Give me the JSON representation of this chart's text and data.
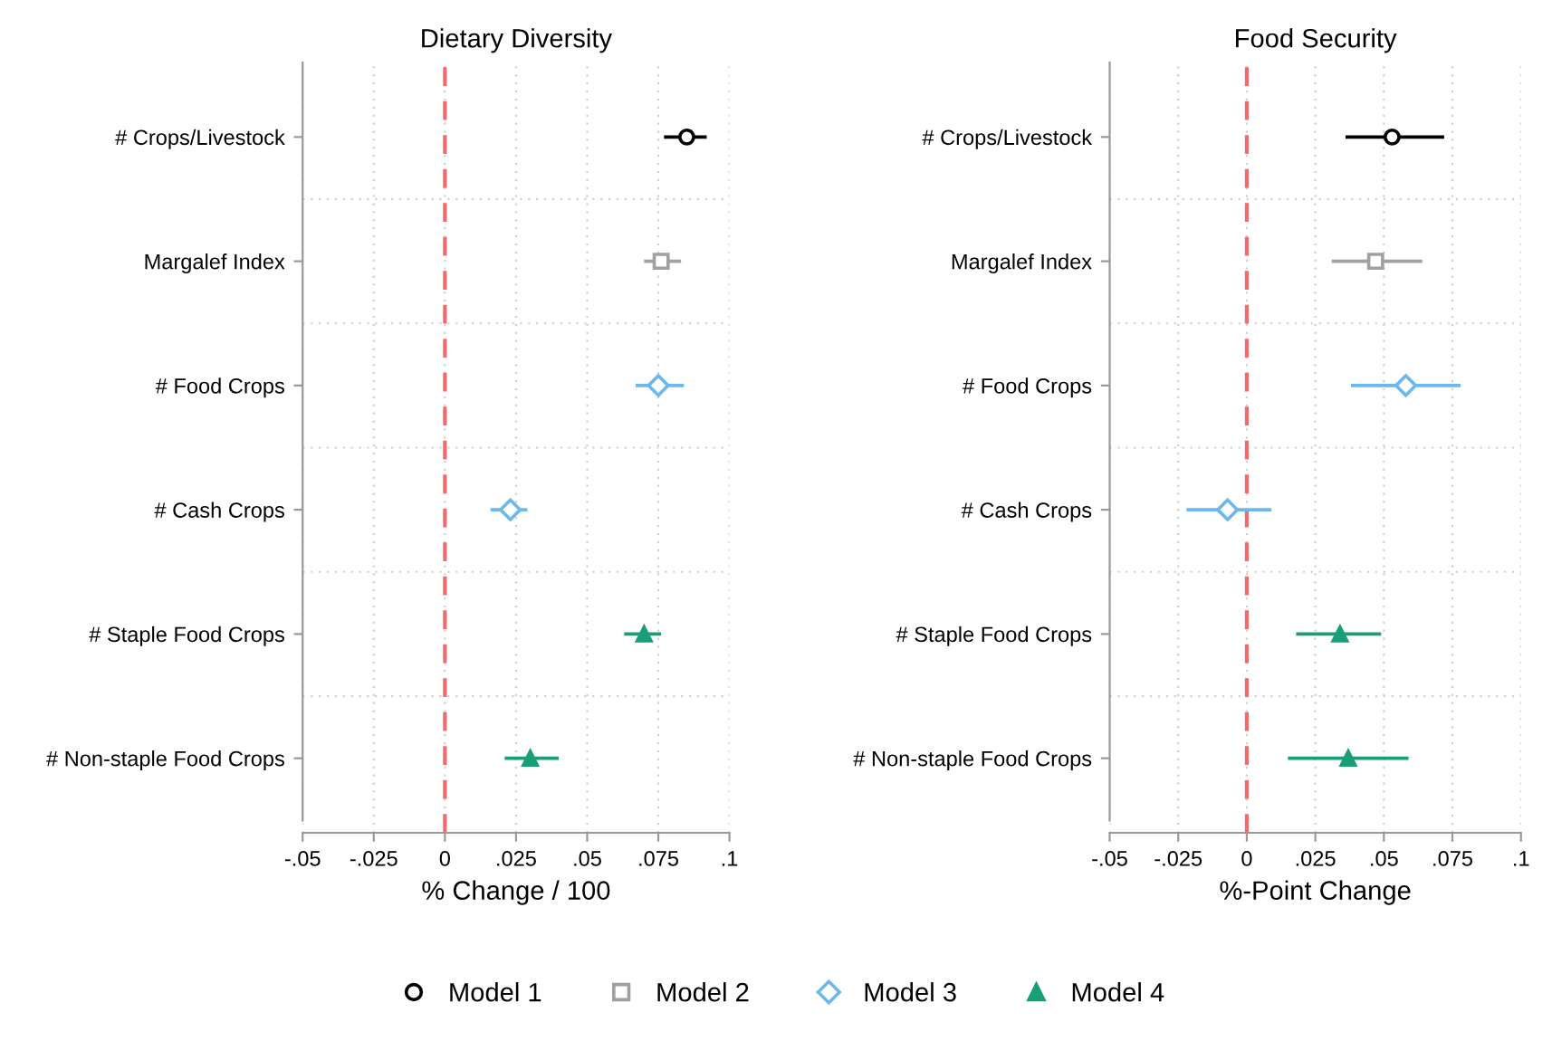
{
  "chart_data": [
    {
      "type": "scatter",
      "title": "Dietary Diversity",
      "xlabel": "% Change / 100",
      "categories": [
        "# Crops/Livestock",
        "Margalef Index",
        "# Food Crops",
        "# Cash Crops",
        "# Staple Food Crops",
        "# Non-staple Food Crops"
      ],
      "orientation": "horizontal",
      "xlim": [
        -0.05,
        0.1
      ],
      "xticks": [
        {
          "value": -0.05,
          "label": "-.05"
        },
        {
          "value": -0.025,
          "label": "-.025"
        },
        0,
        {
          "value": 0.025,
          "label": ".025"
        },
        {
          "value": 0.05,
          "label": ".05"
        },
        {
          "value": 0.075,
          "label": ".075"
        },
        {
          "value": 0.1,
          "label": ".1"
        }
      ],
      "grid": true,
      "legend": "bottom",
      "ref_lines": [
        {
          "axis": "x",
          "value": 0,
          "color": "#f26b6b",
          "line_style": "dashed"
        }
      ],
      "series": [
        {
          "name": "Model 1",
          "color": "#000000",
          "marker": "circle",
          "values": [
            0.085,
            null,
            null,
            null,
            null,
            null
          ],
          "errors": [
            [
              0.077,
              0.092
            ],
            null,
            null,
            null,
            null,
            null
          ]
        },
        {
          "name": "Model 2",
          "color": "#a0a0a0",
          "marker": "square",
          "values": [
            null,
            0.076,
            null,
            null,
            null,
            null
          ],
          "errors": [
            null,
            [
              0.07,
              0.083
            ],
            null,
            null,
            null,
            null
          ]
        },
        {
          "name": "Model 3",
          "color": "#6cb8ec",
          "marker": "diamond",
          "values": [
            null,
            null,
            0.075,
            0.023,
            null,
            null
          ],
          "errors": [
            null,
            null,
            [
              0.067,
              0.084
            ],
            [
              0.016,
              0.029
            ],
            null,
            null
          ]
        },
        {
          "name": "Model 4",
          "color": "#1a9e77",
          "marker": "triangle",
          "values": [
            null,
            null,
            null,
            null,
            0.07,
            0.03
          ],
          "errors": [
            null,
            null,
            null,
            null,
            [
              0.063,
              0.076
            ],
            [
              0.021,
              0.04
            ]
          ]
        }
      ]
    },
    {
      "type": "scatter",
      "title": "Food Security",
      "xlabel": "%-Point Change",
      "categories": [
        "# Crops/Livestock",
        "Margalef Index",
        "# Food Crops",
        "# Cash Crops",
        "# Staple Food Crops",
        "# Non-staple Food Crops"
      ],
      "orientation": "horizontal",
      "xlim": [
        -0.05,
        0.1
      ],
      "xticks": [
        {
          "value": -0.05,
          "label": "-.05"
        },
        {
          "value": -0.025,
          "label": "-.025"
        },
        0,
        {
          "value": 0.025,
          "label": ".025"
        },
        {
          "value": 0.05,
          "label": ".05"
        },
        {
          "value": 0.075,
          "label": ".075"
        },
        {
          "value": 0.1,
          "label": ".1"
        }
      ],
      "grid": true,
      "ref_lines": [
        {
          "axis": "x",
          "value": 0,
          "color": "#f26b6b",
          "line_style": "dashed"
        }
      ],
      "series": [
        {
          "color": "#000000",
          "marker": "circle",
          "values": [
            0.053,
            null,
            null,
            null,
            null,
            null
          ],
          "errors": [
            [
              0.036,
              0.072
            ],
            null,
            null,
            null,
            null,
            null
          ]
        },
        {
          "color": "#a0a0a0",
          "marker": "square",
          "values": [
            null,
            0.047,
            null,
            null,
            null,
            null
          ],
          "errors": [
            null,
            [
              0.031,
              0.064
            ],
            null,
            null,
            null,
            null
          ]
        },
        {
          "color": "#6cb8ec",
          "marker": "diamond",
          "values": [
            null,
            null,
            0.058,
            -0.007,
            null,
            null
          ],
          "errors": [
            null,
            null,
            [
              0.038,
              0.078
            ],
            [
              -0.022,
              0.009
            ],
            null,
            null
          ]
        },
        {
          "color": "#1a9e77",
          "marker": "triangle",
          "values": [
            null,
            null,
            null,
            null,
            0.034,
            0.037
          ],
          "errors": [
            null,
            null,
            null,
            null,
            [
              0.018,
              0.049
            ],
            [
              0.015,
              0.059
            ]
          ]
        }
      ]
    }
  ]
}
